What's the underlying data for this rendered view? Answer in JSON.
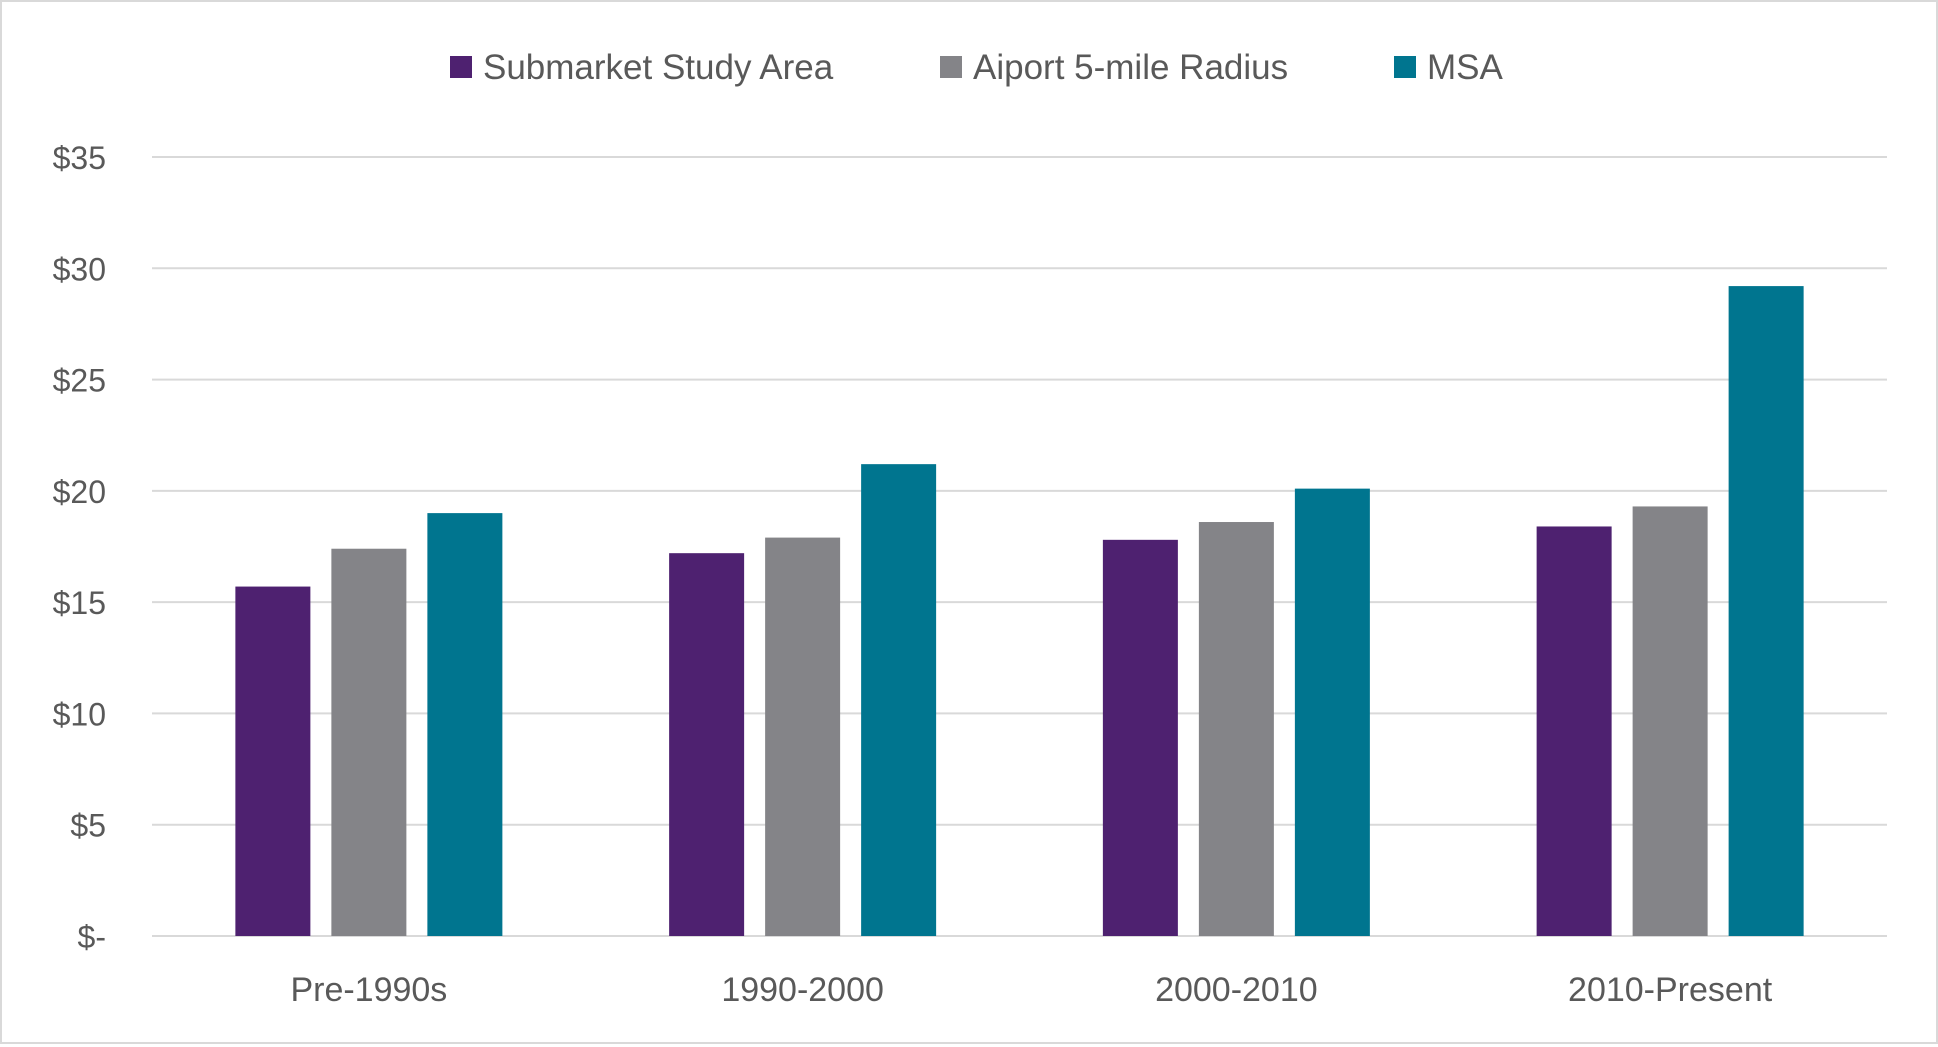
{
  "chart_data": {
    "type": "bar",
    "categories": [
      "Pre-1990s",
      "1990-2000",
      "2000-2010",
      "2010-Present"
    ],
    "series": [
      {
        "name": "Submarket Study Area",
        "color": "#4e2170",
        "values": [
          15.7,
          17.2,
          17.8,
          18.4
        ]
      },
      {
        "name": "Aiport 5-mile Radius",
        "color": "#848488",
        "values": [
          17.4,
          17.9,
          18.6,
          19.3
        ]
      },
      {
        "name": "MSA",
        "color": "#00758f",
        "values": [
          19.0,
          21.2,
          20.1,
          29.2
        ]
      }
    ],
    "yticks": [
      "$-",
      "$5",
      "$10",
      "$15",
      "$20",
      "$25",
      "$30",
      "$35"
    ],
    "ylim": [
      0,
      35
    ],
    "ystep": 5,
    "grid": true,
    "legend": "top-center",
    "title": "",
    "xlabel": "",
    "ylabel": ""
  }
}
